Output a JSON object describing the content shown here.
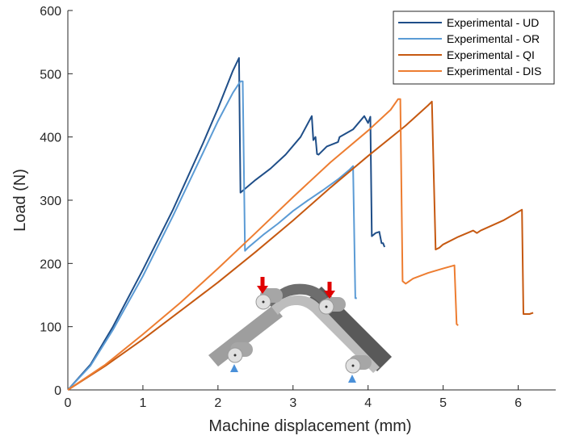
{
  "chart_data": {
    "type": "line",
    "xlabel": "Machine displacement (mm)",
    "ylabel": "Load (N)",
    "xlim": [
      0,
      6.5
    ],
    "ylim": [
      0,
      600
    ],
    "x_ticks": [
      "0",
      "1",
      "2",
      "3",
      "4",
      "5",
      "6"
    ],
    "y_ticks": [
      "0",
      "100",
      "200",
      "300",
      "400",
      "500",
      "600"
    ],
    "grid": false,
    "legend_position": "top-right",
    "series": [
      {
        "name": "Experimental - UD",
        "color": "#1f4e88",
        "points": [
          [
            0,
            0
          ],
          [
            0.3,
            40
          ],
          [
            0.6,
            100
          ],
          [
            1.0,
            190
          ],
          [
            1.4,
            285
          ],
          [
            1.8,
            390
          ],
          [
            2.0,
            445
          ],
          [
            2.2,
            505
          ],
          [
            2.28,
            525
          ],
          [
            2.3,
            312
          ],
          [
            2.36,
            318
          ],
          [
            2.5,
            332
          ],
          [
            2.7,
            350
          ],
          [
            2.9,
            372
          ],
          [
            3.1,
            400
          ],
          [
            3.25,
            433
          ],
          [
            3.27,
            395
          ],
          [
            3.3,
            400
          ],
          [
            3.32,
            373
          ],
          [
            3.34,
            372
          ],
          [
            3.45,
            385
          ],
          [
            3.6,
            392
          ],
          [
            3.62,
            400
          ],
          [
            3.8,
            412
          ],
          [
            3.95,
            433
          ],
          [
            4.0,
            422
          ],
          [
            4.03,
            432
          ],
          [
            4.05,
            243
          ],
          [
            4.1,
            248
          ],
          [
            4.15,
            250
          ],
          [
            4.18,
            232
          ],
          [
            4.2,
            232
          ],
          [
            4.22,
            226
          ]
        ]
      },
      {
        "name": "Experimental - OR",
        "color": "#5b9bd5",
        "points": [
          [
            0,
            0
          ],
          [
            0.3,
            38
          ],
          [
            0.6,
            95
          ],
          [
            1.0,
            180
          ],
          [
            1.4,
            275
          ],
          [
            1.8,
            375
          ],
          [
            2.0,
            425
          ],
          [
            2.2,
            470
          ],
          [
            2.3,
            488
          ],
          [
            2.33,
            488
          ],
          [
            2.36,
            220
          ],
          [
            2.4,
            225
          ],
          [
            2.6,
            245
          ],
          [
            2.8,
            263
          ],
          [
            3.0,
            283
          ],
          [
            3.2,
            300
          ],
          [
            3.4,
            316
          ],
          [
            3.6,
            333
          ],
          [
            3.75,
            348
          ],
          [
            3.8,
            354
          ],
          [
            3.83,
            145
          ],
          [
            3.85,
            145
          ]
        ]
      },
      {
        "name": "Experimental - QI",
        "color": "#c65911",
        "points": [
          [
            0,
            0
          ],
          [
            0.5,
            38
          ],
          [
            1.0,
            80
          ],
          [
            1.5,
            125
          ],
          [
            2.0,
            170
          ],
          [
            2.5,
            218
          ],
          [
            3.0,
            268
          ],
          [
            3.5,
            320
          ],
          [
            4.0,
            370
          ],
          [
            4.5,
            418
          ],
          [
            4.8,
            450
          ],
          [
            4.85,
            456
          ],
          [
            4.9,
            222
          ],
          [
            4.95,
            225
          ],
          [
            5.0,
            230
          ],
          [
            5.2,
            242
          ],
          [
            5.4,
            252
          ],
          [
            5.45,
            248
          ],
          [
            5.5,
            252
          ],
          [
            5.8,
            268
          ],
          [
            6.05,
            285
          ],
          [
            6.07,
            120
          ],
          [
            6.15,
            120
          ],
          [
            6.2,
            122
          ]
        ]
      },
      {
        "name": "Experimental - DIS",
        "color": "#ed7d31",
        "points": [
          [
            0,
            0
          ],
          [
            0.5,
            40
          ],
          [
            1.0,
            88
          ],
          [
            1.5,
            138
          ],
          [
            2.0,
            192
          ],
          [
            2.5,
            248
          ],
          [
            3.0,
            305
          ],
          [
            3.5,
            360
          ],
          [
            4.0,
            410
          ],
          [
            4.3,
            443
          ],
          [
            4.4,
            460
          ],
          [
            4.43,
            460
          ],
          [
            4.46,
            172
          ],
          [
            4.5,
            168
          ],
          [
            4.6,
            176
          ],
          [
            4.8,
            185
          ],
          [
            5.0,
            192
          ],
          [
            5.15,
            197
          ],
          [
            5.18,
            104
          ],
          [
            5.2,
            102
          ]
        ]
      }
    ]
  },
  "inset": {
    "description_icon": "three-point-bending-diagram-icon"
  }
}
